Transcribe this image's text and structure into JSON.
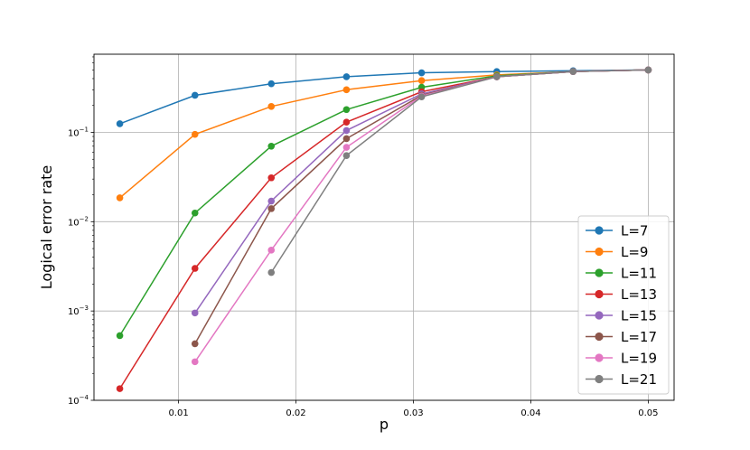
{
  "chart_data": {
    "type": "line",
    "title": "",
    "xlabel": "p",
    "ylabel": "Logical error rate",
    "yscale": "log",
    "xlim": [
      0.0028,
      0.0522
    ],
    "ylim": [
      0.0001,
      0.75
    ],
    "x_ticks": [
      {
        "value": 0.01,
        "label": "0.01"
      },
      {
        "value": 0.02,
        "label": "0.02"
      },
      {
        "value": 0.03,
        "label": "0.03"
      },
      {
        "value": 0.04,
        "label": "0.04"
      },
      {
        "value": 0.05,
        "label": "0.05"
      }
    ],
    "y_ticks": [
      {
        "value": 0.0001,
        "base": "10",
        "exp": "−4"
      },
      {
        "value": 0.001,
        "base": "10",
        "exp": "−3"
      },
      {
        "value": 0.01,
        "base": "10",
        "exp": "−2"
      },
      {
        "value": 0.1,
        "base": "10",
        "exp": "−1"
      }
    ],
    "grid": true,
    "legend_position": "bottom-right",
    "series": [
      {
        "name": "L=7",
        "color": "#1f77b4",
        "x": [
          0.005,
          0.0114,
          0.0179,
          0.0243,
          0.0307,
          0.0371,
          0.0436,
          0.05
        ],
        "y": [
          0.125,
          0.26,
          0.35,
          0.42,
          0.465,
          0.48,
          0.49,
          0.5
        ]
      },
      {
        "name": "L=9",
        "color": "#ff7f0e",
        "x": [
          0.005,
          0.0114,
          0.0179,
          0.0243,
          0.0307,
          0.0371,
          0.0436,
          0.05
        ],
        "y": [
          0.0185,
          0.095,
          0.195,
          0.3,
          0.38,
          0.44,
          0.48,
          0.5
        ]
      },
      {
        "name": "L=11",
        "color": "#2ca02c",
        "x": [
          0.005,
          0.0114,
          0.0179,
          0.0243,
          0.0307,
          0.0371,
          0.0436,
          0.05
        ],
        "y": [
          0.00053,
          0.0125,
          0.07,
          0.18,
          0.32,
          0.43,
          0.48,
          0.5
        ]
      },
      {
        "name": "L=13",
        "color": "#d62728",
        "x": [
          0.005,
          0.0114,
          0.0179,
          0.0243,
          0.0307,
          0.0371,
          0.0436,
          0.05
        ],
        "y": [
          0.000135,
          0.003,
          0.031,
          0.13,
          0.285,
          0.42,
          0.48,
          0.5
        ]
      },
      {
        "name": "L=15",
        "color": "#9467bd",
        "x": [
          0.0114,
          0.0179,
          0.0243,
          0.0307,
          0.0371,
          0.0436,
          0.05
        ],
        "y": [
          0.00095,
          0.017,
          0.105,
          0.27,
          0.42,
          0.48,
          0.5
        ]
      },
      {
        "name": "L=17",
        "color": "#8c564b",
        "x": [
          0.0114,
          0.0179,
          0.0243,
          0.0307,
          0.0371,
          0.0436,
          0.05
        ],
        "y": [
          0.00043,
          0.014,
          0.085,
          0.26,
          0.42,
          0.48,
          0.5
        ]
      },
      {
        "name": "L=19",
        "color": "#e377c2",
        "x": [
          0.0114,
          0.0179,
          0.0243,
          0.0307,
          0.0371,
          0.0436,
          0.05
        ],
        "y": [
          0.00027,
          0.0048,
          0.068,
          0.255,
          0.42,
          0.48,
          0.5
        ]
      },
      {
        "name": "L=21",
        "color": "#7f7f7f",
        "x": [
          0.0179,
          0.0243,
          0.0307,
          0.0371,
          0.0436,
          0.05
        ],
        "y": [
          0.0027,
          0.055,
          0.25,
          0.42,
          0.48,
          0.5
        ]
      }
    ]
  }
}
